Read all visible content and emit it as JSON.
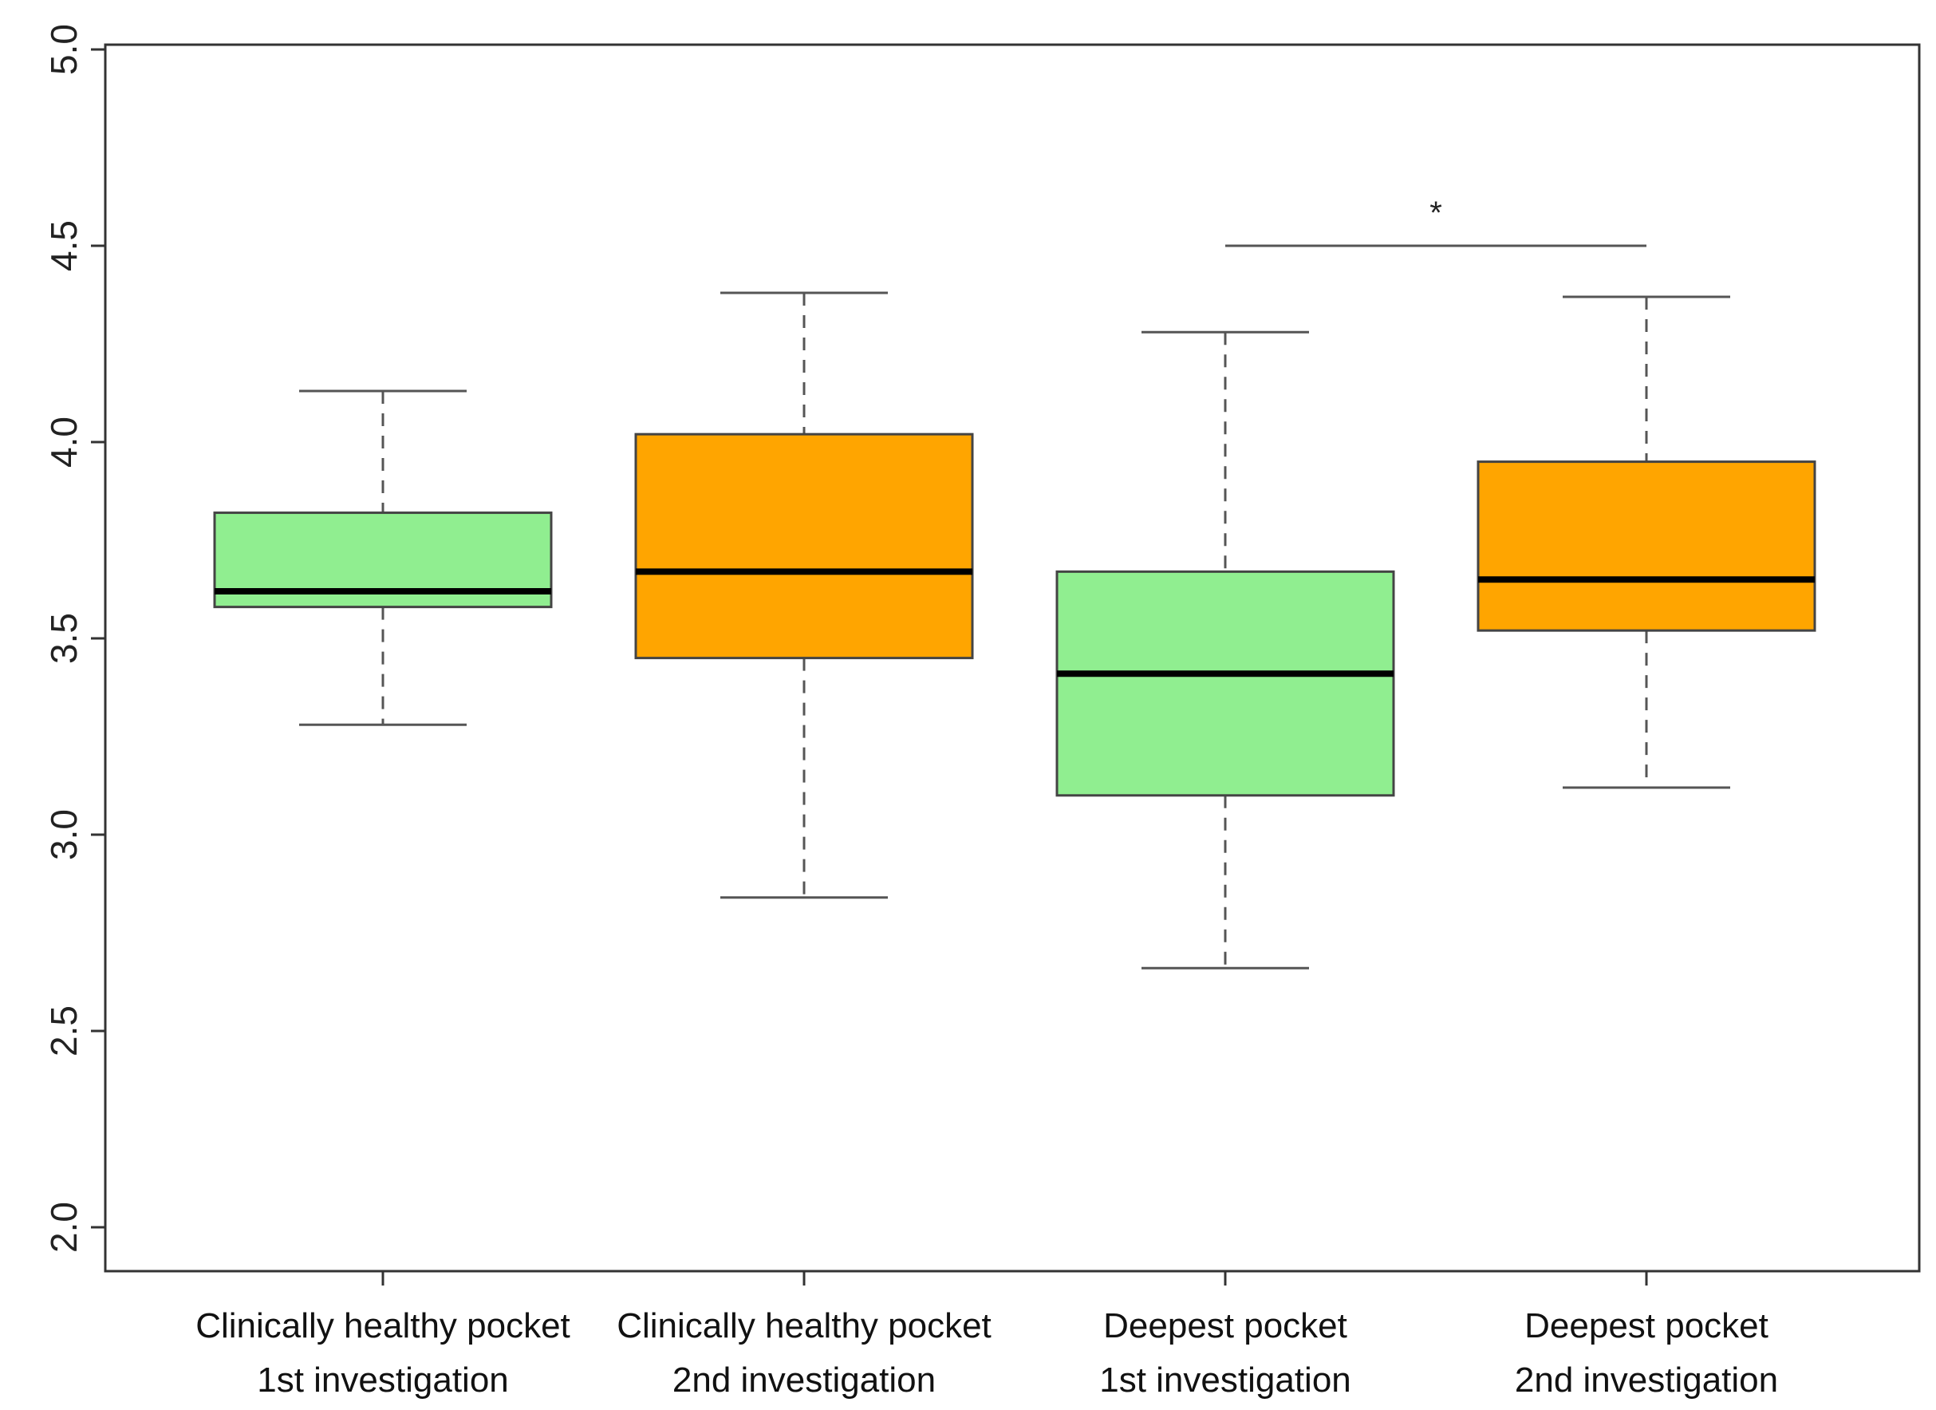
{
  "chart_data": {
    "type": "boxplot",
    "title": "",
    "xlabel": "",
    "ylabel": "",
    "ylim": [
      2.0,
      5.0
    ],
    "yticks": [
      "2.0",
      "2.5",
      "3.0",
      "3.5",
      "4.0",
      "4.5",
      "5.0"
    ],
    "grid": false,
    "categories": [
      [
        "Clinically healthy pocket",
        "1st investigation"
      ],
      [
        "Clinically healthy pocket",
        "2nd investigation"
      ],
      [
        "Deepest pocket",
        "1st investigation"
      ],
      [
        "Deepest pocket",
        "2nd investigation"
      ]
    ],
    "boxes": [
      {
        "min": 3.28,
        "q1": 3.58,
        "median": 3.62,
        "q3": 3.82,
        "max": 4.13,
        "color": "#90ee90"
      },
      {
        "min": 2.84,
        "q1": 3.45,
        "median": 3.67,
        "q3": 4.02,
        "max": 4.38,
        "color": "#ffa500"
      },
      {
        "min": 2.66,
        "q1": 3.1,
        "median": 3.41,
        "q3": 3.67,
        "max": 4.28,
        "color": "#90ee90"
      },
      {
        "min": 3.12,
        "q1": 3.52,
        "median": 3.65,
        "q3": 3.95,
        "max": 4.37,
        "color": "#ffa500"
      }
    ],
    "annotations": [
      {
        "text": "*",
        "from_category": 2,
        "to_category": 3,
        "y": 4.5
      }
    ]
  }
}
